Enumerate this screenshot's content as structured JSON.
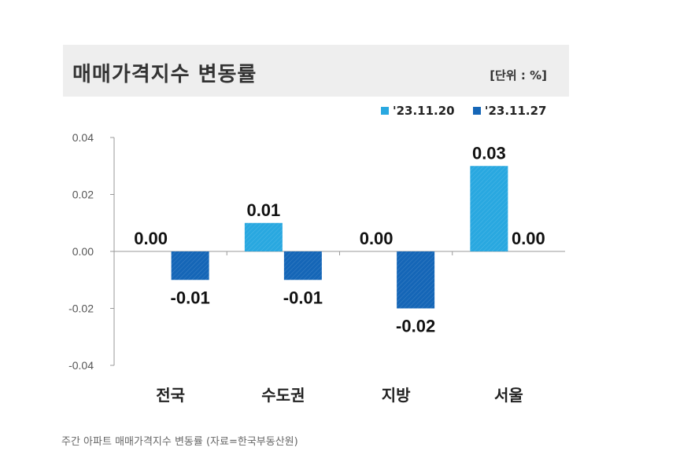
{
  "title": "매매가격지수 변동률",
  "unit_label": "[단위 : %]",
  "caption": "주간 아파트 매매가격지수 변동률 (자료=한국부동산원)",
  "colors": {
    "series1": "#29a8e0",
    "series2": "#1566b7",
    "title_bg": "#eeeeee"
  },
  "chart_data": {
    "type": "bar",
    "categories": [
      "전국",
      "수도권",
      "지방",
      "서울"
    ],
    "series": [
      {
        "name": "'23.11.20",
        "values": [
          0.0,
          0.01,
          0.0,
          0.03
        ],
        "labels": [
          "0.00",
          "0.01",
          "0.00",
          "0.03"
        ]
      },
      {
        "name": "'23.11.27",
        "values": [
          -0.01,
          -0.01,
          -0.02,
          0.0
        ],
        "labels": [
          "-0.01",
          "-0.01",
          "-0.02",
          "0.00"
        ]
      }
    ],
    "ylim": [
      -0.04,
      0.04
    ],
    "yticks": [
      "0.04",
      "0.02",
      "0.00",
      "-0.02",
      "-0.04"
    ],
    "legend_position": "top-right",
    "grid": false
  }
}
